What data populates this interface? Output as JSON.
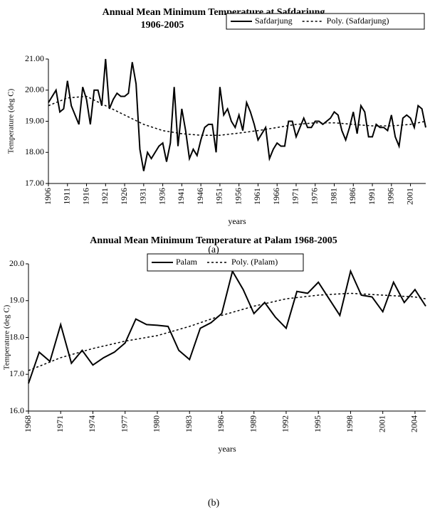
{
  "chart_data": [
    {
      "type": "line",
      "title": "Annual Mean Minimum Temperature at Safdarjung",
      "subtitle": "1906-2005",
      "xlabel": "years",
      "ylabel": "Temperature (deg C)",
      "caption": "(a)",
      "xlim": [
        1906,
        2005
      ],
      "xticks": [
        1906,
        1911,
        1916,
        1921,
        1926,
        1931,
        1936,
        1941,
        1946,
        1951,
        1956,
        1961,
        1966,
        1971,
        1976,
        1981,
        1986,
        1991,
        1996,
        2001
      ],
      "ylim": [
        17,
        21
      ],
      "yticks": [
        {
          "value": 17,
          "label": "17.00"
        },
        {
          "value": 18,
          "label": "18.00"
        },
        {
          "value": 19,
          "label": "19.00"
        },
        {
          "value": 20,
          "label": "20.00"
        },
        {
          "value": 21,
          "label": "21.00"
        }
      ],
      "x": [
        1906,
        1907,
        1908,
        1909,
        1910,
        1911,
        1912,
        1913,
        1914,
        1915,
        1916,
        1917,
        1918,
        1919,
        1920,
        1921,
        1922,
        1923,
        1924,
        1925,
        1926,
        1927,
        1928,
        1929,
        1930,
        1931,
        1932,
        1933,
        1934,
        1935,
        1936,
        1937,
        1938,
        1939,
        1940,
        1941,
        1942,
        1943,
        1944,
        1945,
        1946,
        1947,
        1948,
        1949,
        1950,
        1951,
        1952,
        1953,
        1954,
        1955,
        1956,
        1957,
        1958,
        1959,
        1960,
        1961,
        1962,
        1963,
        1964,
        1965,
        1966,
        1967,
        1968,
        1969,
        1970,
        1971,
        1972,
        1973,
        1974,
        1975,
        1976,
        1977,
        1978,
        1979,
        1980,
        1981,
        1982,
        1983,
        1984,
        1985,
        1986,
        1987,
        1988,
        1989,
        1990,
        1991,
        1992,
        1993,
        1994,
        1995,
        1996,
        1997,
        1998,
        1999,
        2000,
        2001,
        2002,
        2003,
        2004,
        2005
      ],
      "series": [
        {
          "name": "Safdarjung",
          "color": "#000000",
          "dashed": false,
          "values": [
            19.6,
            19.8,
            20.0,
            19.3,
            19.4,
            20.3,
            19.5,
            19.2,
            18.9,
            20.1,
            19.7,
            18.9,
            20.0,
            20.0,
            19.5,
            21.0,
            19.4,
            19.7,
            19.9,
            19.8,
            19.8,
            19.9,
            20.9,
            20.2,
            18.1,
            17.4,
            18.0,
            17.8,
            18.0,
            18.2,
            18.3,
            17.7,
            18.3,
            20.1,
            18.2,
            19.4,
            18.7,
            17.8,
            18.1,
            17.9,
            18.4,
            18.8,
            18.9,
            18.9,
            18.0,
            20.1,
            19.2,
            19.4,
            19.0,
            18.8,
            19.2,
            18.7,
            19.6,
            19.3,
            18.9,
            18.4,
            18.6,
            18.8,
            17.8,
            18.1,
            18.3,
            18.2,
            18.2,
            19.0,
            19.0,
            18.5,
            18.8,
            19.1,
            18.8,
            18.8,
            19.0,
            19.0,
            18.9,
            19.0,
            19.1,
            19.3,
            19.2,
            18.7,
            18.4,
            18.8,
            19.3,
            18.6,
            19.5,
            19.3,
            18.5,
            18.5,
            18.9,
            18.8,
            18.8,
            18.7,
            19.2,
            18.5,
            18.2,
            19.1,
            19.2,
            19.1,
            18.8,
            19.5,
            19.4,
            18.8
          ]
        },
        {
          "name": "Poly. (Safdarjung)",
          "color": "#000000",
          "dashed": true,
          "x": [
            1906,
            1911,
            1916,
            1921,
            1926,
            1931,
            1936,
            1941,
            1946,
            1951,
            1956,
            1961,
            1966,
            1971,
            1976,
            1981,
            1986,
            1991,
            1996,
            2001,
            2005
          ],
          "values": [
            19.5,
            19.75,
            19.8,
            19.5,
            19.2,
            18.9,
            18.7,
            18.6,
            18.55,
            18.55,
            18.62,
            18.7,
            18.8,
            18.9,
            18.95,
            18.95,
            18.9,
            18.85,
            18.85,
            18.9,
            19.0
          ]
        }
      ]
    },
    {
      "type": "line",
      "title": "Annual Mean Minimum Temperature at Palam 1968-2005",
      "xlabel": "years",
      "ylabel": "Temperature (deg C)",
      "caption": "(b)",
      "xlim": [
        1968,
        2005
      ],
      "xticks": [
        1968,
        1971,
        1974,
        1977,
        1980,
        1983,
        1986,
        1989,
        1992,
        1995,
        1998,
        2001,
        2004
      ],
      "ylim": [
        16,
        20
      ],
      "yticks": [
        {
          "value": 16,
          "label": "16.0"
        },
        {
          "value": 17,
          "label": "17.0"
        },
        {
          "value": 18,
          "label": "18.0"
        },
        {
          "value": 19,
          "label": "19.0"
        },
        {
          "value": 20,
          "label": "20.0"
        }
      ],
      "x": [
        1968,
        1969,
        1970,
        1971,
        1972,
        1973,
        1974,
        1975,
        1976,
        1977,
        1978,
        1979,
        1980,
        1981,
        1982,
        1983,
        1984,
        1985,
        1986,
        1987,
        1988,
        1989,
        1990,
        1991,
        1992,
        1993,
        1994,
        1995,
        1996,
        1997,
        1998,
        1999,
        2000,
        2001,
        2002,
        2003,
        2004,
        2005
      ],
      "series": [
        {
          "name": "Palam",
          "color": "#000000",
          "dashed": false,
          "values": [
            16.75,
            17.6,
            17.35,
            18.35,
            17.3,
            17.65,
            17.25,
            17.45,
            17.6,
            17.85,
            18.5,
            18.35,
            18.33,
            18.3,
            17.65,
            17.4,
            18.25,
            18.4,
            18.65,
            19.8,
            19.3,
            18.65,
            18.95,
            18.55,
            18.25,
            19.25,
            19.2,
            19.5,
            19.05,
            18.6,
            19.8,
            19.15,
            19.1,
            18.7,
            19.5,
            18.95,
            19.3,
            18.85
          ]
        },
        {
          "name": "Poly. (Palam)",
          "color": "#000000",
          "dashed": true,
          "x": [
            1968,
            1971,
            1974,
            1977,
            1980,
            1983,
            1986,
            1989,
            1992,
            1995,
            1998,
            2001,
            2004,
            2005
          ],
          "values": [
            17.1,
            17.45,
            17.7,
            17.9,
            18.05,
            18.3,
            18.6,
            18.85,
            19.05,
            19.15,
            19.2,
            19.15,
            19.1,
            19.05
          ]
        }
      ]
    }
  ]
}
